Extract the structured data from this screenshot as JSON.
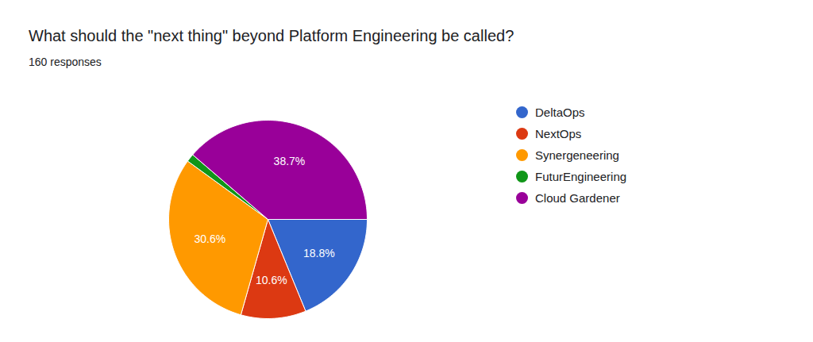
{
  "chart_data": {
    "type": "pie",
    "title": "What should the \"next thing\" beyond Platform Engineering be called?",
    "subtitle": "160 responses",
    "categories": [
      "DeltaOps",
      "NextOps",
      "Synergeneering",
      "FuturEngineering",
      "Cloud Gardener"
    ],
    "values": [
      18.8,
      10.6,
      30.6,
      1.3,
      38.7
    ],
    "value_labels": [
      "18.8%",
      "10.6%",
      "30.6%",
      null,
      "38.7%"
    ],
    "colors": [
      "#3366cc",
      "#dc3912",
      "#ff9900",
      "#109618",
      "#990099"
    ],
    "data_labels": true,
    "legend": "right"
  }
}
